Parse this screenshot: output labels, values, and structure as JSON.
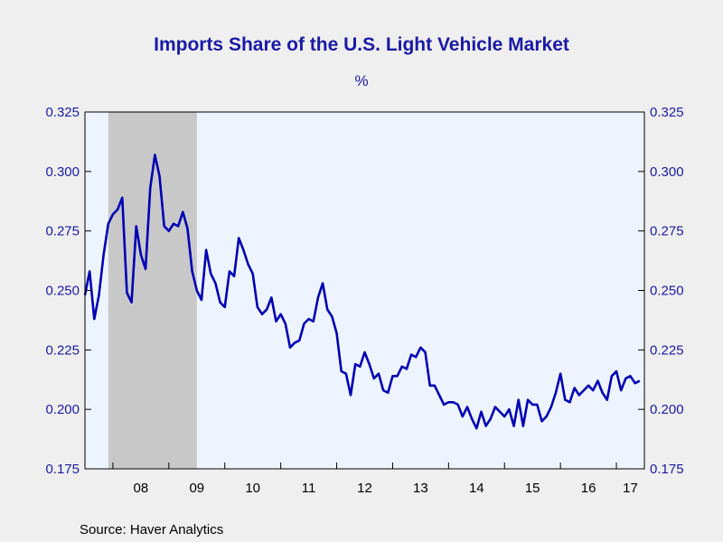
{
  "title": "Imports Share of the U.S. Light Vehicle Market",
  "unit": "%",
  "source": "Source:  Haver Analytics",
  "colors": {
    "line": "#0000b4",
    "plot_bg": "#eef4ff",
    "recession": "#c8c8c8",
    "text": "#1a1aa6"
  },
  "chart_data": {
    "type": "line",
    "frequency": "monthly",
    "x_start": "2007-07",
    "x_tick_labels": [
      "08",
      "09",
      "10",
      "11",
      "12",
      "13",
      "14",
      "15",
      "16",
      "17"
    ],
    "ylim": [
      0.175,
      0.325
    ],
    "y_ticks": [
      0.175,
      0.2,
      0.225,
      0.25,
      0.275,
      0.3,
      0.325
    ],
    "y_tick_labels": [
      "0.175",
      "0.200",
      "0.225",
      "0.250",
      "0.275",
      "0.300",
      "0.325"
    ],
    "y_axis_both_sides": true,
    "grid": false,
    "recession_shading": {
      "start": "2007-12",
      "end": "2009-06"
    },
    "series": [
      {
        "values": [
          0.248,
          0.258,
          0.238,
          0.248,
          0.265,
          0.278,
          0.282,
          0.284,
          0.289,
          0.249,
          0.245,
          0.277,
          0.265,
          0.259,
          0.293,
          0.307,
          0.298,
          0.277,
          0.275,
          0.278,
          0.277,
          0.283,
          0.276,
          0.258,
          0.25,
          0.246,
          0.267,
          0.257,
          0.253,
          0.245,
          0.243,
          0.258,
          0.256,
          0.272,
          0.267,
          0.261,
          0.257,
          0.243,
          0.24,
          0.242,
          0.247,
          0.237,
          0.24,
          0.236,
          0.226,
          0.228,
          0.229,
          0.236,
          0.238,
          0.237,
          0.247,
          0.253,
          0.242,
          0.239,
          0.232,
          0.216,
          0.215,
          0.206,
          0.219,
          0.218,
          0.224,
          0.219,
          0.213,
          0.215,
          0.208,
          0.207,
          0.214,
          0.214,
          0.218,
          0.217,
          0.223,
          0.222,
          0.226,
          0.224,
          0.21,
          0.21,
          0.206,
          0.202,
          0.203,
          0.203,
          0.202,
          0.197,
          0.201,
          0.196,
          0.192,
          0.199,
          0.193,
          0.196,
          0.201,
          0.199,
          0.197,
          0.2,
          0.193,
          0.204,
          0.193,
          0.204,
          0.202,
          0.202,
          0.195,
          0.197,
          0.201,
          0.207,
          0.215,
          0.204,
          0.203,
          0.209,
          0.206,
          0.208,
          0.21,
          0.208,
          0.212,
          0.207,
          0.204,
          0.214,
          0.216,
          0.208,
          0.213,
          0.214,
          0.211,
          0.212
        ]
      }
    ]
  }
}
